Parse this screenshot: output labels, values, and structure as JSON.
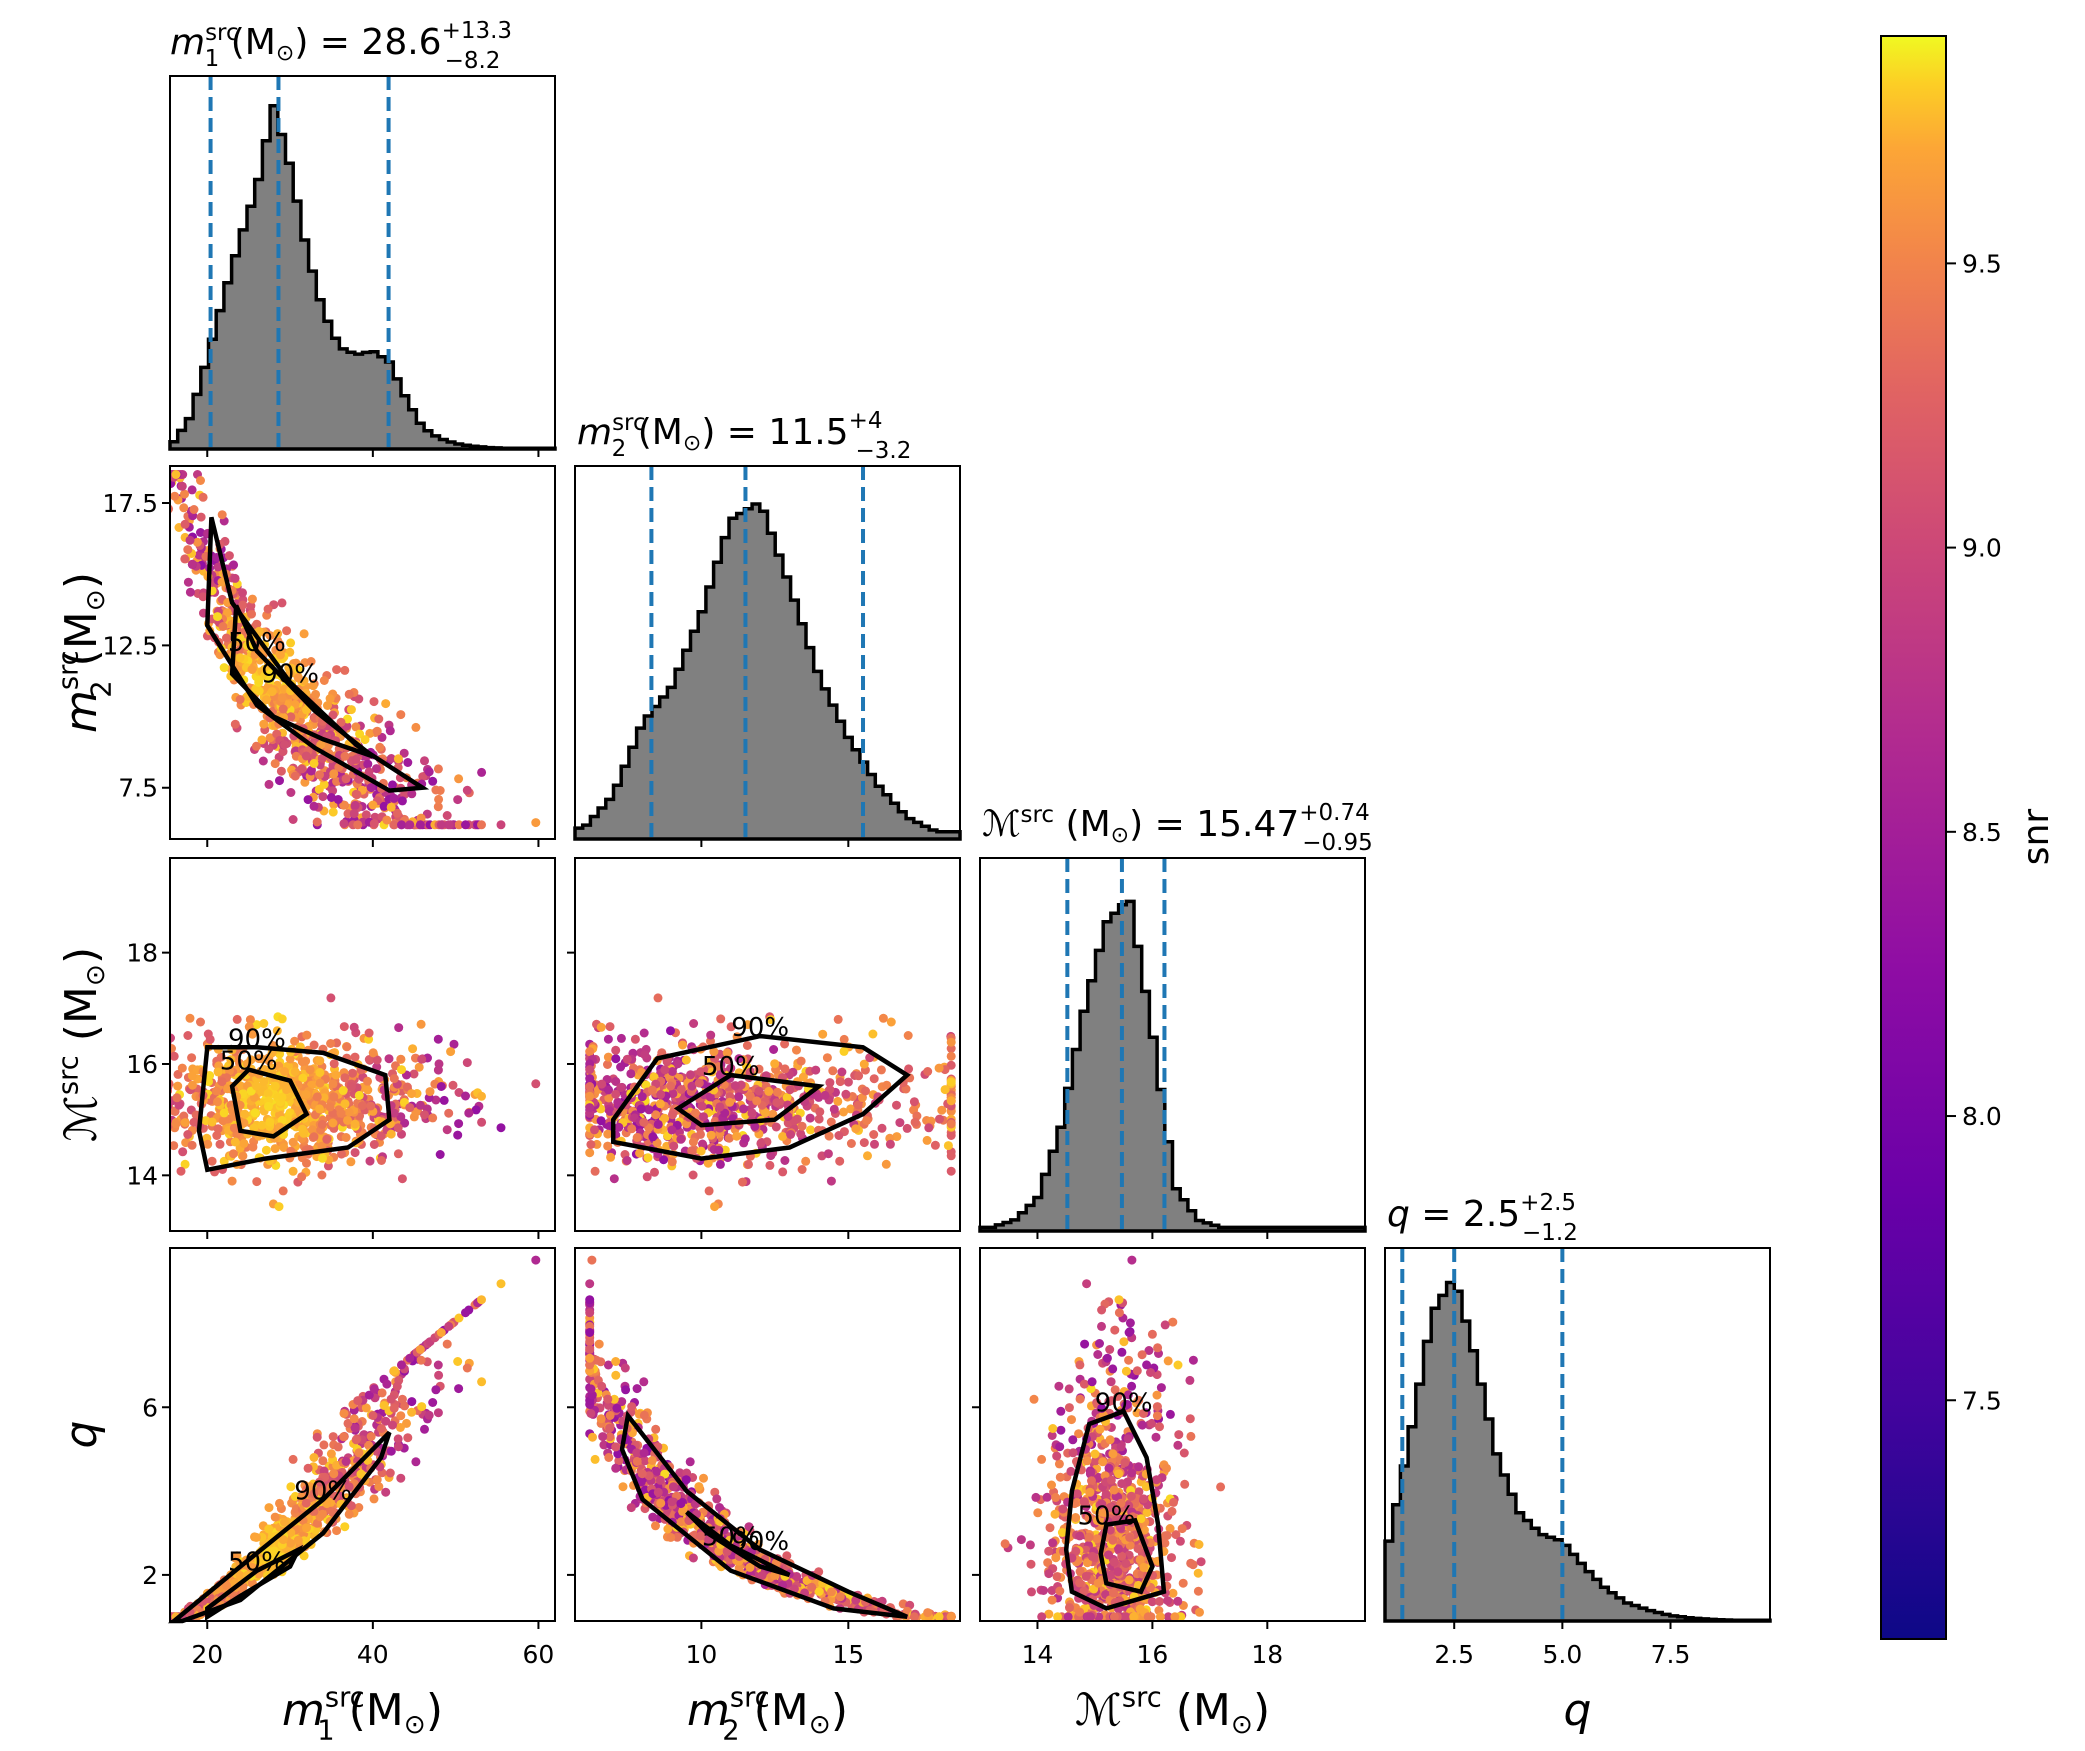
{
  "chart_data": {
    "type": "scatter",
    "description_kind": "corner plot",
    "parameters": [
      {
        "key": "m1",
        "symbol": "m",
        "sub": "1",
        "sup": "src",
        "unit": "(M",
        "range": [
          15.5,
          62
        ],
        "ticks": [
          20,
          40,
          60
        ],
        "tick_labels": [
          "20",
          "40",
          "60"
        ]
      },
      {
        "key": "m2",
        "symbol": "m",
        "sub": "2",
        "sup": "src",
        "unit": "(M",
        "range": [
          5.7,
          18.8
        ],
        "ticks": [
          10,
          15
        ],
        "tick_labels": [
          "10",
          "15"
        ],
        "y_ticks": [
          7.5,
          12.5,
          17.5
        ],
        "y_tick_labels": [
          "7.5",
          "12.5",
          "17.5"
        ]
      },
      {
        "key": "mc",
        "symbol": "ℳ",
        "sub": "",
        "sup": "src",
        "unit": "(M",
        "range": [
          13.0,
          19.7
        ],
        "ticks": [
          14,
          16,
          18
        ],
        "tick_labels": [
          "14",
          "16",
          "18"
        ]
      },
      {
        "key": "q",
        "symbol": "q",
        "sub": "",
        "sup": "",
        "unit": "",
        "range": [
          0.9,
          9.8
        ],
        "ticks": [
          2.5,
          5.0,
          7.5
        ],
        "tick_labels": [
          "2.5",
          "5.0",
          "7.5"
        ],
        "y_ticks": [
          2,
          6
        ],
        "y_tick_labels": [
          "2",
          "6"
        ]
      }
    ],
    "titles": [
      {
        "symbol": "m",
        "sub": "1",
        "sup": "src",
        "unit": "(M",
        "value": "28.6",
        "plus": "+13.3",
        "minus": "−8.2"
      },
      {
        "symbol": "m",
        "sub": "2",
        "sup": "src",
        "unit": "(M",
        "value": "11.5",
        "plus": "+4",
        "minus": "−3.2"
      },
      {
        "symbol": "ℳ",
        "sub": "",
        "sup": "src",
        "unit": "(M",
        "value": "15.47",
        "plus": "+0.74",
        "minus": "−0.95"
      },
      {
        "symbol": "q",
        "sub": "",
        "sup": "",
        "unit": "",
        "value": "2.5",
        "plus": "+2.5",
        "minus": "−1.2"
      }
    ],
    "quantile_lines": {
      "m1": [
        20.4,
        28.6,
        41.9
      ],
      "m2": [
        8.3,
        11.5,
        15.5
      ],
      "mc": [
        14.52,
        15.47,
        16.21
      ],
      "q": [
        1.3,
        2.5,
        5.0
      ]
    },
    "histograms": {
      "m1": {
        "x": [
          16,
          18,
          20,
          22,
          24,
          26,
          28,
          30,
          32,
          34,
          36,
          38,
          40,
          42,
          44,
          46,
          48,
          50,
          52,
          54,
          56
        ],
        "density": [
          0.02,
          0.09,
          0.25,
          0.42,
          0.58,
          0.72,
          0.95,
          0.78,
          0.55,
          0.38,
          0.28,
          0.26,
          0.27,
          0.24,
          0.14,
          0.06,
          0.03,
          0.015,
          0.008,
          0.004,
          0.002
        ]
      },
      "m2": {
        "x": [
          6,
          7,
          8,
          9,
          10,
          11,
          12,
          13,
          14,
          15,
          16,
          17,
          18
        ],
        "density": [
          0.03,
          0.12,
          0.32,
          0.42,
          0.62,
          0.88,
          0.93,
          0.7,
          0.45,
          0.28,
          0.15,
          0.06,
          0.02
        ]
      },
      "mc": {
        "x": [
          13.2,
          13.6,
          14.0,
          14.4,
          14.8,
          15.2,
          15.6,
          16.0,
          16.4,
          16.8,
          17.2
        ],
        "density": [
          0.01,
          0.03,
          0.09,
          0.28,
          0.6,
          0.85,
          0.92,
          0.55,
          0.12,
          0.03,
          0.01
        ]
      },
      "q": {
        "x": [
          1.0,
          1.5,
          2.0,
          2.5,
          3.0,
          3.5,
          4.0,
          4.5,
          5.0,
          5.5,
          6.0,
          6.5,
          7.0,
          7.5,
          8.0,
          8.5,
          9.0
        ],
        "density": [
          0.22,
          0.52,
          0.85,
          0.95,
          0.72,
          0.45,
          0.3,
          0.24,
          0.22,
          0.15,
          0.09,
          0.05,
          0.03,
          0.015,
          0.008,
          0.004,
          0.002
        ]
      }
    },
    "contour_labels": [
      "50%",
      "90%"
    ],
    "colorbar": {
      "label": "snr",
      "range": [
        7.08,
        9.9
      ],
      "ticks": [
        7.5,
        8.0,
        8.5,
        9.0,
        9.5
      ],
      "tick_labels": [
        "7.5",
        "8.0",
        "8.5",
        "9.0",
        "9.5"
      ],
      "colormap": "plasma"
    },
    "colors": {
      "quantile": "#1f77b4",
      "hist_fill": "#808080",
      "contour": "#000000"
    }
  }
}
